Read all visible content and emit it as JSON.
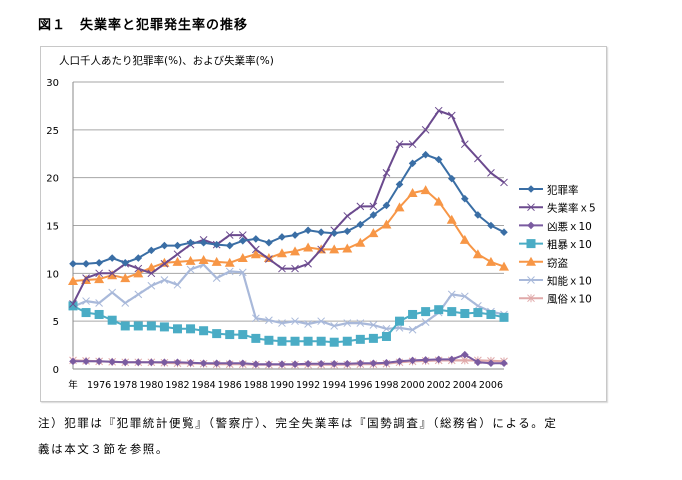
{
  "figure": {
    "title": "図１　失業率と犯罪発生率の推移"
  },
  "notes": {
    "line1": "注）犯罪は『犯罪統計便覧』（警察庁）、完全失業率は『国勢調査』（総務省）による。定",
    "line2": "義は本文３節を参照。"
  },
  "chart_data": {
    "type": "line",
    "title": "",
    "ylabel": "人口千人あたり犯罪率(%)、および失業率(%)",
    "xlabel": "年",
    "ylim": [
      0,
      30
    ],
    "yticks": [
      0,
      5,
      10,
      15,
      20,
      25,
      30
    ],
    "grid": true,
    "legend_position": "right",
    "x": [
      1974,
      1975,
      1976,
      1977,
      1978,
      1979,
      1980,
      1981,
      1982,
      1983,
      1984,
      1985,
      1986,
      1987,
      1988,
      1989,
      1990,
      1991,
      1992,
      1993,
      1994,
      1995,
      1996,
      1997,
      1998,
      1999,
      2000,
      2001,
      2002,
      2003,
      2004,
      2005,
      2006,
      2007
    ],
    "xtick_labels": [
      {
        "x": 1974,
        "label": "年"
      },
      {
        "x": 1976,
        "label": "1976"
      },
      {
        "x": 1978,
        "label": "1978"
      },
      {
        "x": 1980,
        "label": "1980"
      },
      {
        "x": 1982,
        "label": "1982"
      },
      {
        "x": 1984,
        "label": "1984"
      },
      {
        "x": 1986,
        "label": "1986"
      },
      {
        "x": 1988,
        "label": "1988"
      },
      {
        "x": 1990,
        "label": "1990"
      },
      {
        "x": 1992,
        "label": "1992"
      },
      {
        "x": 1994,
        "label": "1994"
      },
      {
        "x": 1996,
        "label": "1996"
      },
      {
        "x": 1998,
        "label": "1998"
      },
      {
        "x": 2000,
        "label": "2000"
      },
      {
        "x": 2002,
        "label": "2002"
      },
      {
        "x": 2004,
        "label": "2004"
      },
      {
        "x": 2006,
        "label": "2006"
      }
    ],
    "series": [
      {
        "name": "犯罪率",
        "color": "#3a6ea5",
        "marker": "diamond",
        "values": [
          11.0,
          11.0,
          11.1,
          11.6,
          11.1,
          11.6,
          12.4,
          12.9,
          12.9,
          13.2,
          13.2,
          13.0,
          12.9,
          13.4,
          13.6,
          13.2,
          13.8,
          14.0,
          14.5,
          14.3,
          14.2,
          14.4,
          15.1,
          16.1,
          17.1,
          19.3,
          21.5,
          22.4,
          21.9,
          19.9,
          17.8,
          16.1,
          15.0,
          14.3
        ]
      },
      {
        "name": "失業率ｘ5",
        "color": "#6b4a8e",
        "marker": "x",
        "values": [
          6.8,
          9.5,
          10.0,
          10.0,
          11.0,
          10.5,
          10.0,
          11.0,
          12.0,
          13.0,
          13.5,
          13.0,
          14.0,
          14.0,
          12.5,
          11.5,
          10.5,
          10.5,
          11.0,
          12.5,
          14.5,
          16.0,
          17.0,
          17.0,
          20.5,
          23.5,
          23.5,
          25.0,
          27.0,
          26.5,
          23.5,
          22.0,
          20.5,
          19.5
        ]
      },
      {
        "name": "凶悪ｘ10",
        "color": "#7a5ba0",
        "marker": "diamond",
        "values": [
          0.8,
          0.8,
          0.8,
          0.75,
          0.7,
          0.7,
          0.7,
          0.7,
          0.7,
          0.65,
          0.6,
          0.6,
          0.6,
          0.6,
          0.5,
          0.5,
          0.5,
          0.5,
          0.55,
          0.55,
          0.55,
          0.55,
          0.6,
          0.6,
          0.65,
          0.8,
          0.9,
          0.95,
          1.0,
          1.0,
          1.5,
          0.7,
          0.6,
          0.6
        ]
      },
      {
        "name": "粗暴ｘ10",
        "color": "#4aacc5",
        "marker": "square",
        "values": [
          6.6,
          5.9,
          5.7,
          5.1,
          4.5,
          4.5,
          4.5,
          4.4,
          4.2,
          4.2,
          4.0,
          3.7,
          3.6,
          3.6,
          3.2,
          3.0,
          2.9,
          2.9,
          2.9,
          2.9,
          2.8,
          2.9,
          3.1,
          3.2,
          3.4,
          5.0,
          5.7,
          6.0,
          6.2,
          6.0,
          5.8,
          5.9,
          5.7,
          5.4
        ]
      },
      {
        "name": "窃盗",
        "color": "#f79646",
        "marker": "triangle",
        "values": [
          9.2,
          9.3,
          9.4,
          9.8,
          9.5,
          10.0,
          10.6,
          11.1,
          11.2,
          11.3,
          11.4,
          11.2,
          11.1,
          11.6,
          12.0,
          11.6,
          12.1,
          12.3,
          12.7,
          12.5,
          12.5,
          12.6,
          13.2,
          14.2,
          15.1,
          16.9,
          18.4,
          18.7,
          17.5,
          15.6,
          13.5,
          12.0,
          11.2,
          10.7
        ]
      },
      {
        "name": "知能ｘ10",
        "color": "#a9b9da",
        "marker": "x",
        "values": [
          6.5,
          7.1,
          6.9,
          8.0,
          6.9,
          7.8,
          8.7,
          9.3,
          8.8,
          10.4,
          10.9,
          9.5,
          10.2,
          10.1,
          5.3,
          5.1,
          4.8,
          5.0,
          4.7,
          5.0,
          4.5,
          4.8,
          4.8,
          4.6,
          4.2,
          4.3,
          4.1,
          4.9,
          5.9,
          7.8,
          7.6,
          6.6,
          6.0,
          5.7
        ]
      },
      {
        "name": "風俗ｘ10",
        "color": "#e0a9a9",
        "marker": "star",
        "values": [
          0.9,
          0.85,
          0.8,
          0.75,
          0.7,
          0.7,
          0.7,
          0.65,
          0.6,
          0.6,
          0.55,
          0.5,
          0.5,
          0.5,
          0.45,
          0.45,
          0.45,
          0.45,
          0.45,
          0.45,
          0.45,
          0.45,
          0.5,
          0.5,
          0.55,
          0.7,
          0.8,
          0.85,
          0.9,
          0.9,
          0.9,
          0.9,
          0.85,
          0.8
        ]
      }
    ]
  }
}
